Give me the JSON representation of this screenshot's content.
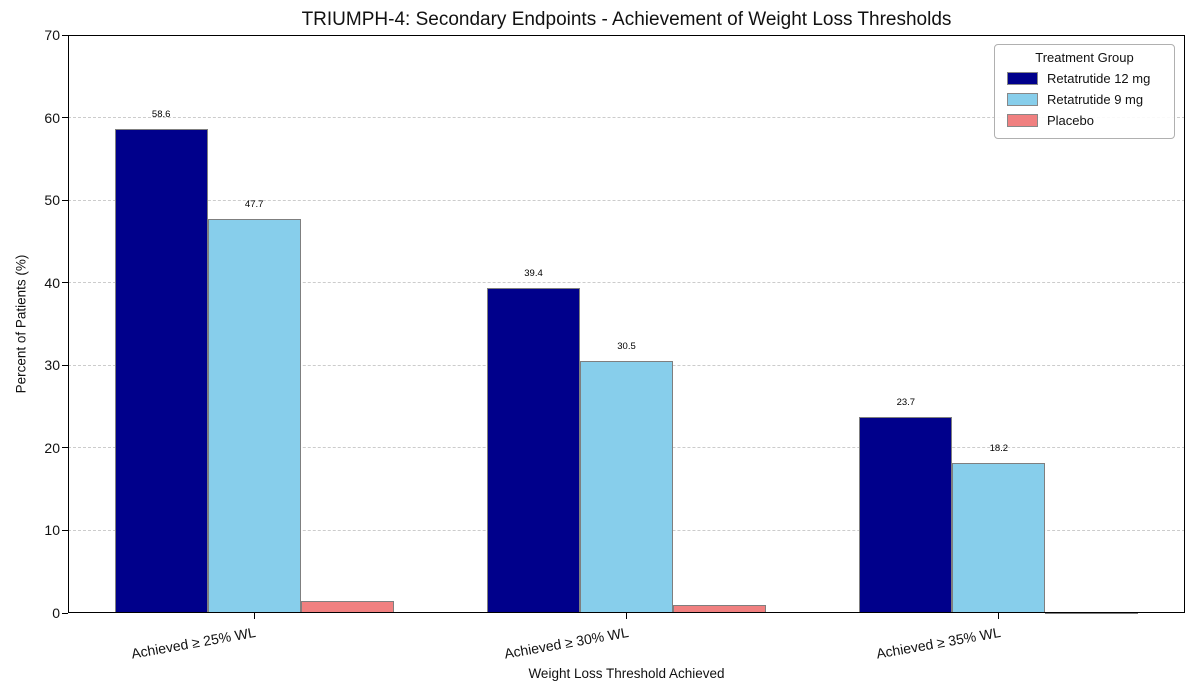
{
  "chart_data": {
    "type": "bar",
    "title": "TRIUMPH-4: Secondary Endpoints - Achievement of Weight Loss Thresholds",
    "xlabel": "Weight Loss Threshold Achieved",
    "ylabel": "Percent of Patients (%)",
    "ylim": [
      0,
      70
    ],
    "yticks": [
      0,
      10,
      20,
      30,
      40,
      50,
      60,
      70
    ],
    "grid": {
      "axis": "y",
      "style": "dashed",
      "color": "#cccccc"
    },
    "categories": [
      "Achieved ≥ 25% WL",
      "Achieved ≥ 30% WL",
      "Achieved ≥ 35% WL"
    ],
    "series": [
      {
        "name": "Retatrutide 12 mg",
        "color": "#00008B",
        "values": [
          58.6,
          39.4,
          23.7
        ],
        "value_labels": [
          "58.6",
          "39.4",
          "23.7"
        ]
      },
      {
        "name": "Retatrutide 9 mg",
        "color": "#87CEEB",
        "values": [
          47.7,
          30.5,
          18.2
        ],
        "value_labels": [
          "47.7",
          "30.5",
          "18.2"
        ]
      },
      {
        "name": "Placebo",
        "color": "#F08080",
        "values": [
          1.5,
          1.0,
          0.1
        ],
        "value_labels": [
          "",
          "",
          ""
        ]
      }
    ],
    "bar_edge_color": "#7f7f7f",
    "legend": {
      "title": "Treatment Group",
      "position": "upper right"
    }
  }
}
